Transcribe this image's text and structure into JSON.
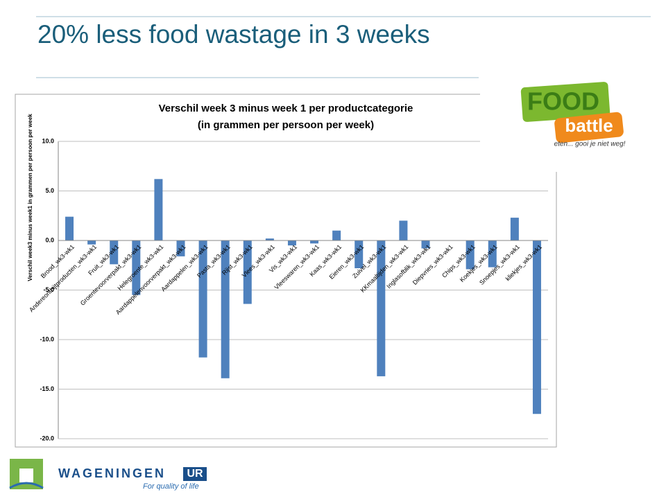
{
  "slide": {
    "title": "20% less food wastage in 3 weeks",
    "logo_food": "FOOD",
    "logo_battle": "battle",
    "logo_tagline": "eten... gooi je niet weg!",
    "footer_brand": "WAGENINGEN",
    "footer_brand_ur": "UR",
    "footer_tagline": "For quality of life"
  },
  "chart_data": {
    "type": "bar",
    "title": "Verschil week 3 minus week 1 per productcategorie",
    "subtitle": "(in grammen per persoon per week)",
    "y_label": "Verschil week3  minus week1 in grammen per persoon per week",
    "categories": [
      "Brood_wk3-wk1",
      "Andereontbijtproducten_wk3-wk1",
      "Fruit_wk3-wk1",
      "Groentevoorverpakt_wk3-wk1",
      "Helegroente_wk3-wk1",
      "Aardappelenvoorverpakt_wk3-wk1",
      "Aardappelen_wk3-wk1",
      "Pasta_wk3-wk1",
      "Rijst_wk3-wk1",
      "Vlees_wk3-wk1",
      "Vis_wk3-wk1",
      "Vleeswaren_wk3-wk1",
      "Kaas_wk3-wk1",
      "Eieren_wk3-wk1",
      "Zuivel_wk3-wk1",
      "KKmaaltijden_wk3-wk1",
      "Inglasofblik_wk3-wk1",
      "Diepvries_wk3-wk1",
      "Chips_wk3-wk1",
      "Koekjes_wk3-wk1",
      "Snoepjes_wk3-wk1",
      "kliekjes_wk3-wk1"
    ],
    "values": [
      2.4,
      -0.4,
      -2.4,
      -5.5,
      6.2,
      -1.6,
      -11.8,
      -13.9,
      -6.4,
      0.2,
      -0.5,
      -0.3,
      1.0,
      -2.8,
      -13.7,
      2.0,
      -0.8,
      0.0,
      -2.9,
      -2.7,
      2.3,
      -17.5
    ],
    "color": "#4f81bd",
    "ylim": [
      -20,
      10
    ],
    "yticks": [
      {
        "value": -20,
        "label": "-20.0"
      },
      {
        "value": -15,
        "label": "-15.0"
      },
      {
        "value": -10,
        "label": "-10.0"
      },
      {
        "value": -5,
        "label": "-5.0"
      },
      {
        "value": 0,
        "label": "0.0"
      },
      {
        "value": 5,
        "label": "5.0"
      },
      {
        "value": 10,
        "label": "10.0"
      }
    ],
    "grid": true
  }
}
